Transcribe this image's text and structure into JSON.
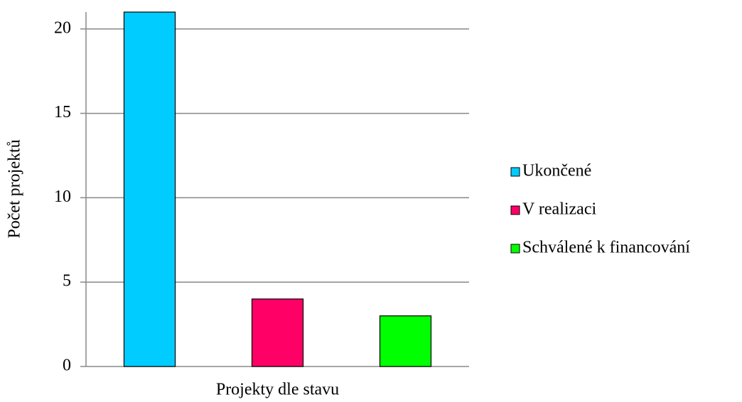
{
  "chart_data": {
    "type": "bar",
    "y_label": "Počet projektů",
    "categories": [
      "Projekty dle stavu"
    ],
    "series": [
      {
        "name": "Ukončené",
        "color": "#00ccff",
        "values": [
          21
        ]
      },
      {
        "name": "V realizaci",
        "color": "#ff0066",
        "values": [
          4
        ]
      },
      {
        "name": "Schválené k financování",
        "color": "#00ff00",
        "values": [
          3
        ]
      }
    ],
    "ylim": [
      0,
      21
    ],
    "yticks": [
      0,
      5,
      10,
      15,
      20
    ],
    "grid": true,
    "legend": "right"
  }
}
